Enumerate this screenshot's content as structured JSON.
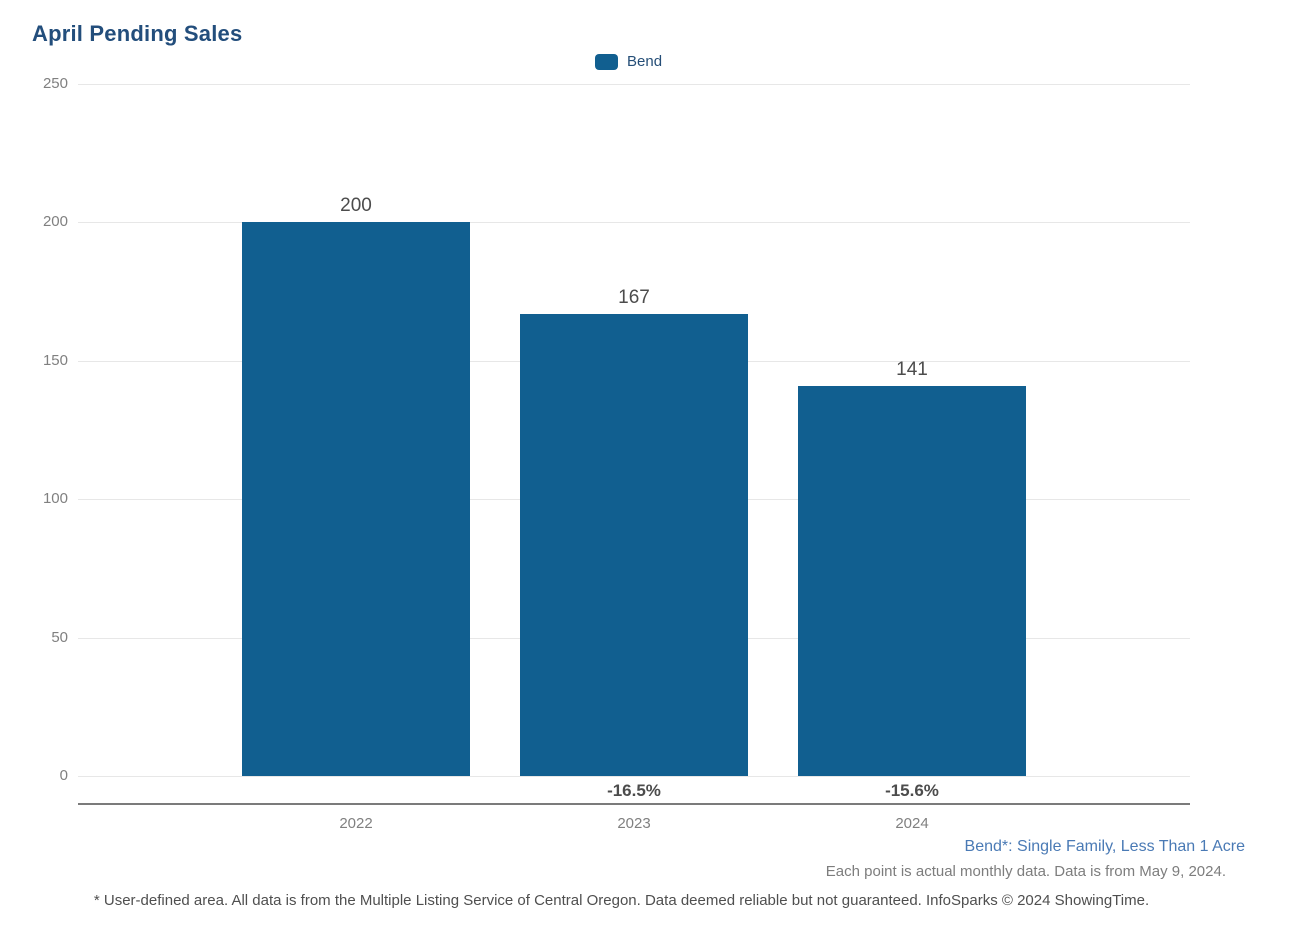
{
  "chart_data": {
    "type": "bar",
    "title": "April Pending Sales",
    "legend": [
      {
        "label": "Bend",
        "color": "#115f90"
      }
    ],
    "legend_position": "top-center",
    "categories": [
      "2022",
      "2023",
      "2024"
    ],
    "series": [
      {
        "name": "Bend",
        "values": [
          200,
          167,
          141
        ]
      }
    ],
    "bar_value_labels": [
      "200",
      "167",
      "141"
    ],
    "pct_change_labels": [
      "",
      "-16.5%",
      "-15.6%"
    ],
    "xlabel": "",
    "ylabel": "",
    "ylim": [
      0,
      250
    ],
    "yticks": [
      0,
      50,
      100,
      150,
      200,
      250
    ],
    "grid": "horizontal"
  },
  "annotations": {
    "series_note": "Bend*: Single Family, Less Than 1 Acre",
    "data_note": "Each point is actual monthly data. Data is from May 9, 2024.",
    "footnote": "* User-defined area. All data is from the Multiple Listing Service of Central Oregon. Data deemed reliable but not guaranteed. InfoSparks © 2024 ShowingTime."
  },
  "colors": {
    "bar": "#115f90",
    "title": "#234e7c",
    "series_note": "#4a7ab5",
    "axis_text": "#808080",
    "value_text": "#4c4c4c",
    "grid": "#e7e7e7",
    "axis_line": "#7b7b7b",
    "background": "#ffffff"
  }
}
